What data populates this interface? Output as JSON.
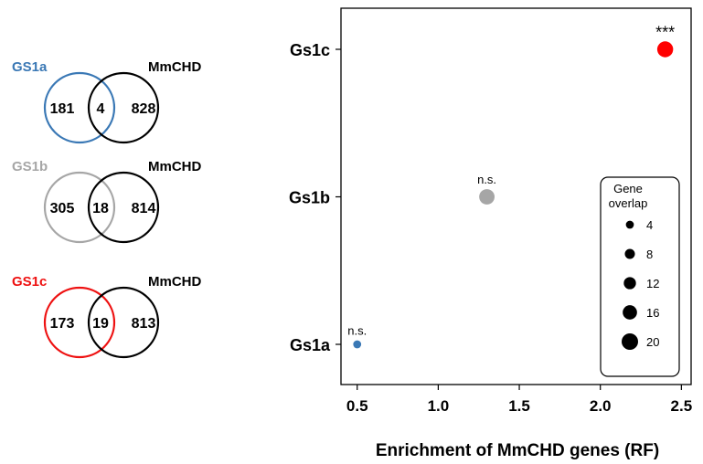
{
  "venn_panels": [
    {
      "set_label": "GS1a",
      "set_color": "#3a78b5",
      "other_label": "MmCHD",
      "left_only": "181",
      "overlap": "4",
      "right_only": "828"
    },
    {
      "set_label": "GS1b",
      "set_color": "#a6a6a6",
      "other_label": "MmCHD",
      "left_only": "305",
      "overlap": "18",
      "right_only": "814"
    },
    {
      "set_label": "GS1c",
      "set_color": "#ee1111",
      "other_label": "MmCHD",
      "left_only": "173",
      "overlap": "19",
      "right_only": "813"
    }
  ],
  "chart_data": {
    "type": "scatter",
    "xlabel": "Enrichment of MmCHD genes (RF)",
    "ylabel": "",
    "xlim": [
      0.4,
      2.56
    ],
    "xticks": [
      "0.5",
      "1.0",
      "1.5",
      "2.0",
      "2.5"
    ],
    "categories": [
      "Gs1a",
      "Gs1b",
      "Gs1c"
    ],
    "points": [
      {
        "category": "Gs1a",
        "x": 0.5,
        "overlap": 4,
        "color": "#3a78b5",
        "annotation": "n.s."
      },
      {
        "category": "Gs1b",
        "x": 1.3,
        "overlap": 18,
        "color": "#a6a6a6",
        "annotation": "n.s."
      },
      {
        "category": "Gs1c",
        "x": 2.4,
        "overlap": 19,
        "color": "#ff0000",
        "annotation": "***"
      }
    ],
    "legend": {
      "title_line1": "Gene",
      "title_line2": "overlap",
      "sizes": [
        4,
        8,
        12,
        16,
        20
      ],
      "placement": "lower-right"
    },
    "grid": false
  }
}
